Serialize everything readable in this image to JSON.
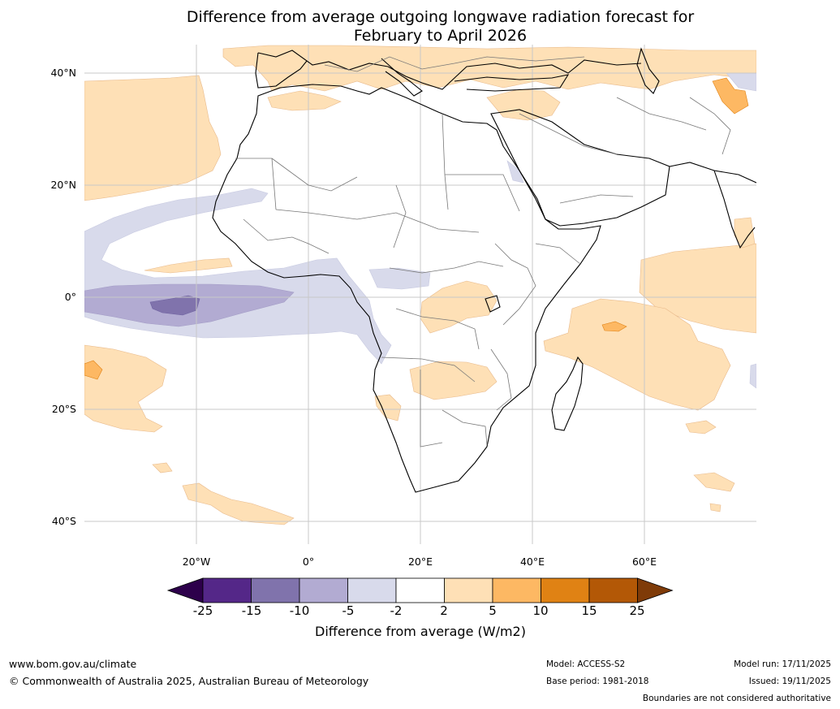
{
  "title": {
    "line1": "Difference from average outgoing longwave radiation forecast for",
    "line2": "February to April 2026"
  },
  "axes": {
    "lat_ticks": [
      "40°N",
      "20°N",
      "0°",
      "20°S",
      "40°S"
    ],
    "lon_ticks": [
      "20°W",
      "0°",
      "20°E",
      "40°E",
      "60°E"
    ]
  },
  "colorbar": {
    "tick_labels": [
      "-25",
      "-15",
      "-10",
      "-5",
      "-2",
      "2",
      "5",
      "10",
      "15",
      "25"
    ],
    "label": "Difference from average (W/m2)",
    "colors": [
      "#2d004b",
      "#542788",
      "#8073ac",
      "#b2abd2",
      "#d8daeb",
      "#ffffff",
      "#fee0b6",
      "#fdb863",
      "#e08214",
      "#b35806",
      "#7f3b08"
    ]
  },
  "footer": {
    "website": "www.bom.gov.au/climate",
    "copyright": "© Commonwealth of Australia 2025, Australian Bureau of Meteorology",
    "model": "Model: ACCESS-S2",
    "base_period": "Base period: 1981-2018",
    "model_run": "Model run: 17/11/2025",
    "issued": "Issued: 19/11/2025",
    "disclaimer": "Boundaries are not considered authoritative"
  }
}
